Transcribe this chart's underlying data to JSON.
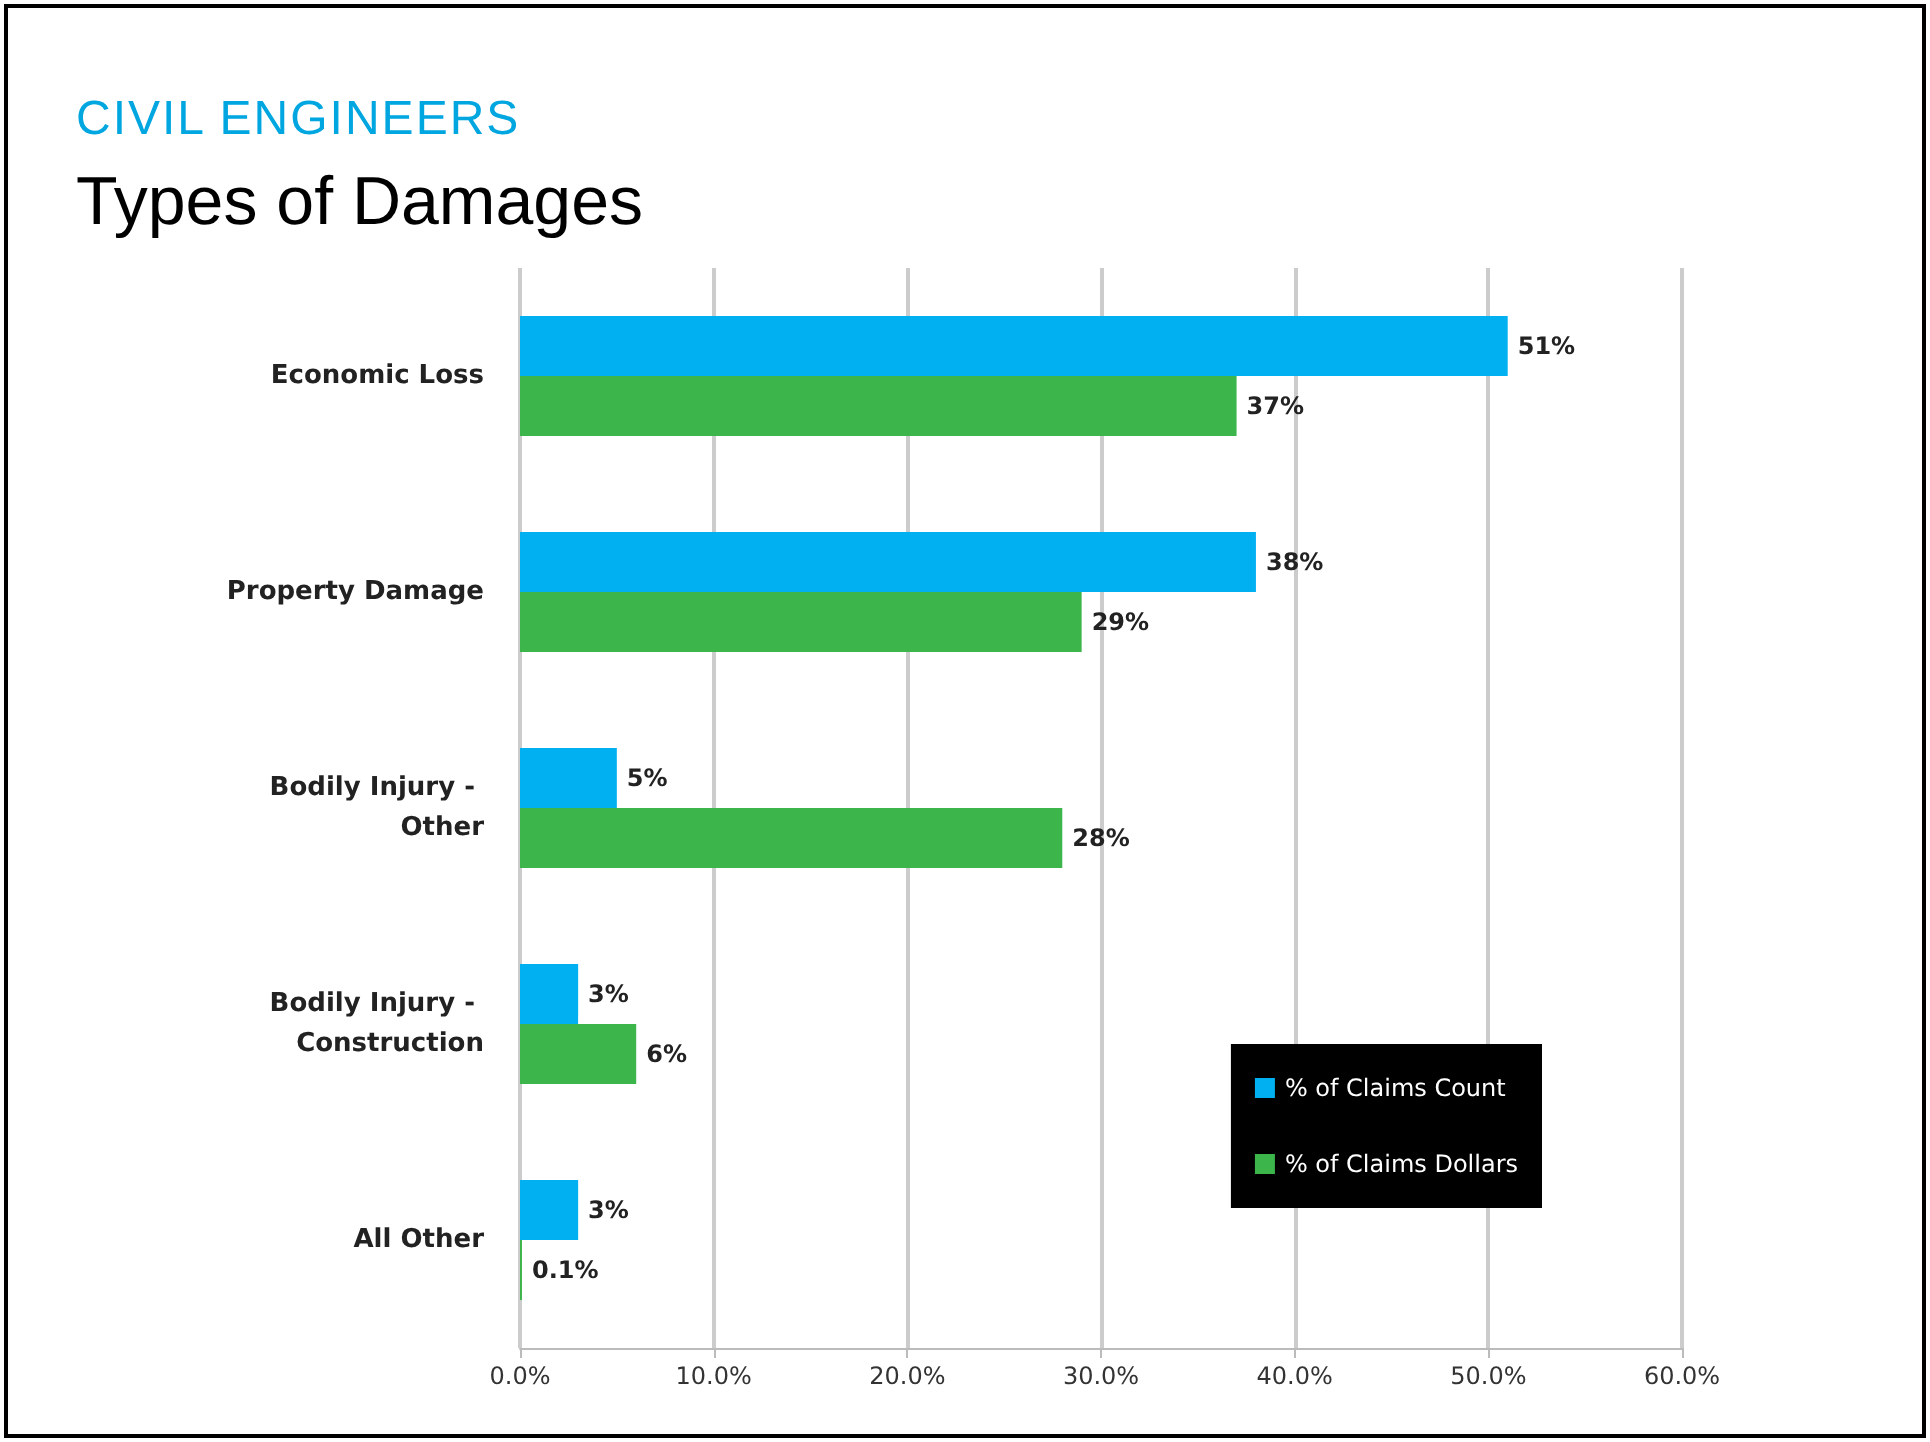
{
  "chart_data": {
    "type": "bar",
    "orientation": "horizontal",
    "subtitle": "CIVIL ENGINEERS",
    "title": "Types of Damages",
    "categories": [
      "Economic Loss",
      "Property Damage",
      "Bodily Injury - Other",
      "Bodily Injury - Construction",
      "All Other"
    ],
    "series": [
      {
        "name": "% of Claims Count",
        "color": "#00b0f0",
        "values": [
          51,
          38,
          5,
          3,
          3
        ],
        "value_labels": [
          "51%",
          "38%",
          "5%",
          "3%",
          "3%"
        ]
      },
      {
        "name": "% of Claims Dollars",
        "color": "#3cb54a",
        "values": [
          37,
          29,
          28,
          6,
          0.1
        ],
        "value_labels": [
          "37%",
          "29%",
          "28%",
          "6%",
          "0.1%"
        ]
      }
    ],
    "xlim": [
      0,
      60
    ],
    "xticks": [
      {
        "value": 0,
        "label": "0.0%"
      },
      {
        "value": 10,
        "label": "10.0%"
      },
      {
        "value": 20,
        "label": "20.0%"
      },
      {
        "value": 30,
        "label": "30.0%"
      },
      {
        "value": 40,
        "label": "40.0%"
      },
      {
        "value": 50,
        "label": "50.0%"
      },
      {
        "value": 60,
        "label": "60.0%"
      }
    ],
    "grid": "x",
    "legend": "bottom right"
  }
}
